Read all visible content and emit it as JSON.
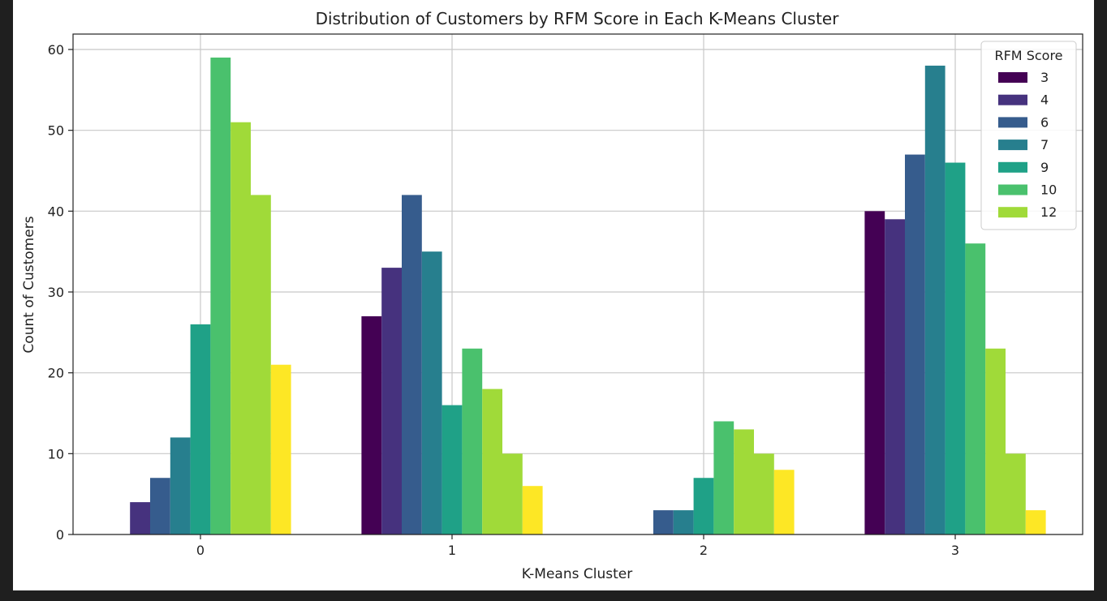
{
  "chart_data": {
    "type": "bar",
    "title": "Distribution of Customers by RFM Score in Each K-Means Cluster",
    "xlabel": "K-Means Cluster",
    "ylabel": "Count of Customers",
    "categories": [
      "0",
      "1",
      "2",
      "3"
    ],
    "ylim": [
      0,
      62
    ],
    "yticks": [
      0,
      10,
      20,
      30,
      40,
      50,
      60
    ],
    "grid": true,
    "legend": {
      "title": "RFM Score",
      "placement": "top-right"
    },
    "series": [
      {
        "name": "3",
        "color": "#440154",
        "values": [
          0,
          27,
          0,
          40
        ]
      },
      {
        "name": "4",
        "color": "#46327e",
        "values": [
          4,
          33,
          0,
          39
        ]
      },
      {
        "name": "6",
        "color": "#365c8d",
        "values": [
          7,
          42,
          3,
          47
        ]
      },
      {
        "name": "7",
        "color": "#277f8e",
        "values": [
          12,
          35,
          3,
          58
        ]
      },
      {
        "name": "9",
        "color": "#1fa187",
        "values": [
          26,
          16,
          7,
          46
        ]
      },
      {
        "name": "10",
        "color": "#4ac16d",
        "values": [
          59,
          23,
          14,
          36
        ]
      },
      {
        "name": "12",
        "color": "#a0da39",
        "values": [
          51,
          18,
          13,
          23
        ]
      },
      {
        "name": "",
        "color": "#a0da39",
        "values": [
          42,
          10,
          10,
          10
        ]
      },
      {
        "name": "",
        "color": "#fde725",
        "values": [
          21,
          6,
          8,
          3
        ]
      }
    ]
  }
}
